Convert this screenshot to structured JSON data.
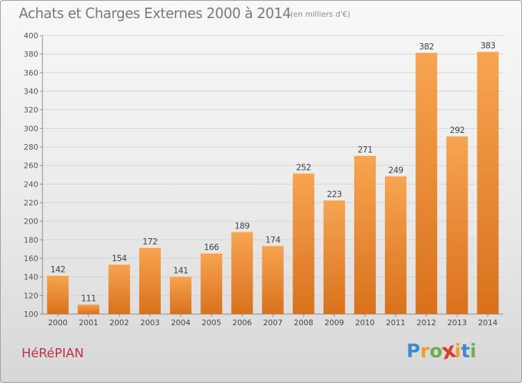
{
  "title": "Achats et Charges Externes 2000 à 2014",
  "subtitle": "(en milliers d'€)",
  "commune": "HéRéPIAN",
  "logo": {
    "letters": [
      "P",
      "r",
      "o",
      "x",
      "i",
      "t",
      "i"
    ],
    "colors": [
      "#3a8bd0",
      "#f0a020",
      "#6ab04c",
      "#e03a2a",
      "#f0a020",
      "#3a8bd0",
      "#6ab04c"
    ]
  },
  "colors": {
    "bar_light": "#f7a551",
    "bar_dark": "#d9711c",
    "commune": "#c0304a",
    "grid": "#d4d4d4"
  },
  "chart_data": {
    "type": "bar",
    "title": "Achats et Charges Externes 2000 à 2014",
    "subtitle": "(en milliers d'€)",
    "categories": [
      "2000",
      "2001",
      "2002",
      "2003",
      "2004",
      "2005",
      "2006",
      "2007",
      "2008",
      "2009",
      "2010",
      "2011",
      "2012",
      "2013",
      "2014"
    ],
    "values": [
      142,
      111,
      154,
      172,
      141,
      166,
      189,
      174,
      252,
      223,
      271,
      249,
      382,
      292,
      383
    ],
    "ylim": [
      100,
      400
    ],
    "yticks": [
      100,
      120,
      140,
      160,
      180,
      200,
      220,
      240,
      260,
      280,
      300,
      320,
      340,
      360,
      380,
      400
    ],
    "grid": true,
    "data_labels": true
  }
}
